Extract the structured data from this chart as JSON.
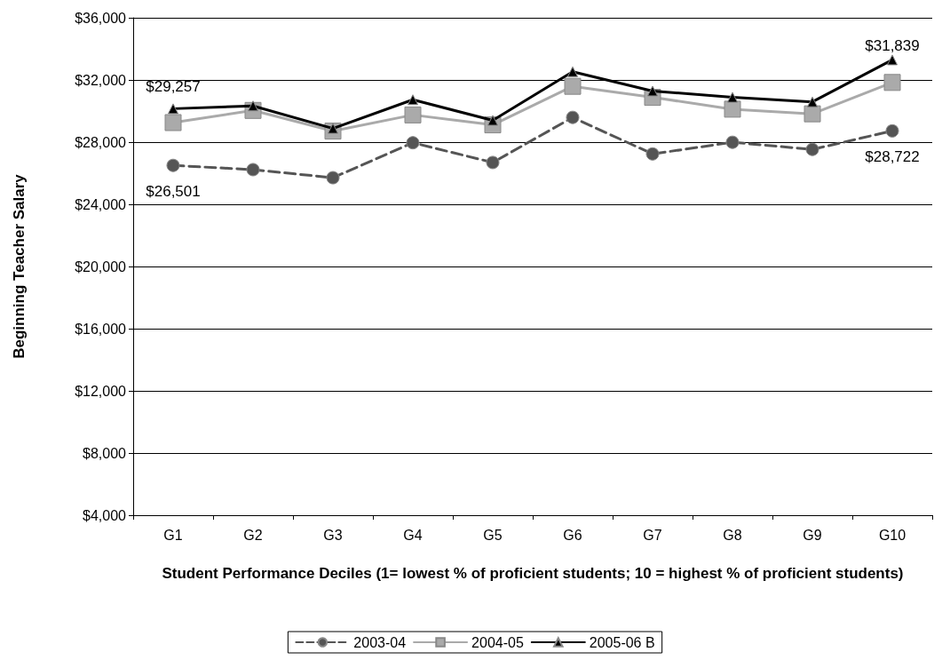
{
  "chart_data": {
    "type": "line",
    "xlabel": "Student Performance Deciles (1= lowest % of proficient students; 10 = highest % of proficient students)",
    "ylabel": "Beginning Teacher Salary",
    "categories": [
      "G1",
      "G2",
      "G3",
      "G4",
      "G5",
      "G6",
      "G7",
      "G8",
      "G9",
      "G10"
    ],
    "series": [
      {
        "name": "2003-04",
        "color": "#555555",
        "marker": "circle",
        "line_style": "dashed",
        "values": [
          26501,
          26230,
          25710,
          27960,
          26690,
          29590,
          27240,
          27990,
          27530,
          28722
        ],
        "value_labels": [
          "$26,501",
          null,
          null,
          null,
          null,
          null,
          null,
          null,
          null,
          "$28,722"
        ]
      },
      {
        "name": "2004-05",
        "color": "#aaaaaa",
        "marker": "square",
        "line_style": "solid",
        "values": [
          29257,
          30040,
          28710,
          29750,
          29110,
          31590,
          30880,
          30120,
          29820,
          31839
        ],
        "value_labels": [
          "$29,257",
          null,
          null,
          null,
          null,
          null,
          null,
          null,
          null,
          "$31,839"
        ]
      },
      {
        "name": "2005-06 B",
        "color": "#000000",
        "marker": "triangle",
        "line_style": "solid",
        "values": [
          30150,
          30330,
          28880,
          30730,
          29400,
          32530,
          31290,
          30880,
          30590,
          33290
        ]
      }
    ],
    "ylim": [
      4000,
      36000
    ],
    "yticks": [
      {
        "value": 4000,
        "label": "$4,000"
      },
      {
        "value": 8000,
        "label": "$8,000"
      },
      {
        "value": 12000,
        "label": "$12,000"
      },
      {
        "value": 16000,
        "label": "$16,000"
      },
      {
        "value": 20000,
        "label": "$20,000"
      },
      {
        "value": 24000,
        "label": "$24,000"
      },
      {
        "value": 28000,
        "label": "$28,000"
      },
      {
        "value": 32000,
        "label": "$32,000"
      },
      {
        "value": 36000,
        "label": "$36,000"
      }
    ],
    "grid": "y",
    "legend": "bottom"
  }
}
